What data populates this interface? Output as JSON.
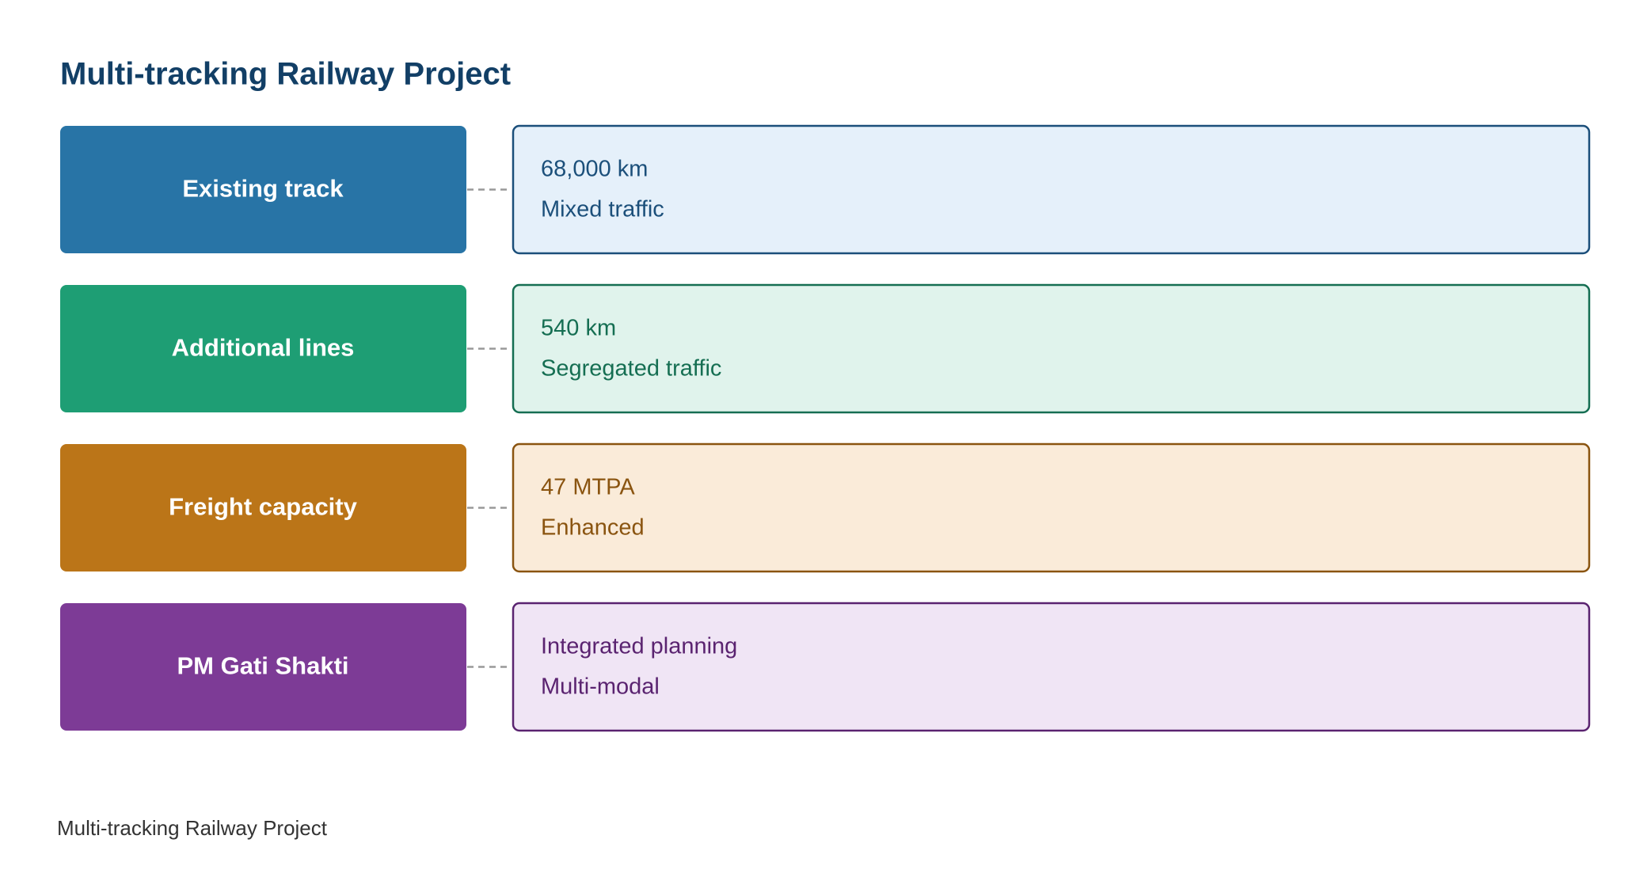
{
  "header": {
    "title": "Multi-tracking Railway Project"
  },
  "rows": [
    {
      "label": "Existing track",
      "lines": [
        "68,000 km",
        "Mixed traffic"
      ]
    },
    {
      "label": "Additional lines",
      "lines": [
        "540 km",
        "Segregated traffic"
      ]
    },
    {
      "label": "Freight capacity",
      "lines": [
        "47 MTPA",
        "Enhanced"
      ]
    },
    {
      "label": "PM Gati Shakti",
      "lines": [
        "Integrated planning",
        "Multi-modal"
      ]
    }
  ],
  "footer": "Multi-tracking Railway Project"
}
